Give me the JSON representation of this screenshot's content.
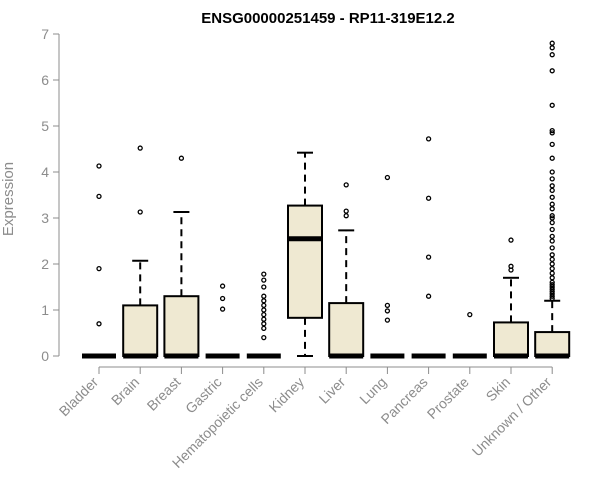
{
  "chart_data": {
    "type": "boxplot",
    "title": "ENSG00000251459 - RP11-319E12.2",
    "xlabel": "",
    "ylabel": "Expression",
    "ylim": [
      0,
      7
    ],
    "yticks": [
      0,
      1,
      2,
      3,
      4,
      5,
      6,
      7
    ],
    "grid": false,
    "box_color": "#efe9d2",
    "categories": [
      "Bladder",
      "Brain",
      "Breast",
      "Gastric",
      "Hematopoietic cells",
      "Kidney",
      "Liver",
      "Lung",
      "Pancreas",
      "Prostate",
      "Skin",
      "Unknown / Other"
    ],
    "boxes": [
      {
        "category": "Bladder",
        "min": 0,
        "q1": 0,
        "median": 0,
        "q3": 0,
        "max": 0,
        "outliers": [
          0.7,
          1.9,
          3.47,
          4.13
        ]
      },
      {
        "category": "Brain",
        "min": 0,
        "q1": 0,
        "median": 0,
        "q3": 1.1,
        "max": 2.07,
        "outliers": [
          3.13,
          4.52
        ]
      },
      {
        "category": "Breast",
        "min": 0,
        "q1": 0,
        "median": 0,
        "q3": 1.3,
        "max": 3.13,
        "outliers": [
          4.3
        ]
      },
      {
        "category": "Gastric",
        "min": 0,
        "q1": 0,
        "median": 0,
        "q3": 0,
        "max": 0,
        "outliers": [
          1.02,
          1.25,
          1.52
        ]
      },
      {
        "category": "Hematopoietic cells",
        "min": 0,
        "q1": 0,
        "median": 0,
        "q3": 0,
        "max": 0,
        "outliers": [
          0.4,
          0.6,
          0.7,
          0.8,
          0.9,
          1.0,
          1.1,
          1.2,
          1.3,
          1.5,
          1.65,
          1.78
        ]
      },
      {
        "category": "Kidney",
        "min": 0,
        "q1": 0.83,
        "median": 2.55,
        "q3": 3.27,
        "max": 4.42,
        "outliers": []
      },
      {
        "category": "Liver",
        "min": 0,
        "q1": 0,
        "median": 0,
        "q3": 1.15,
        "max": 2.73,
        "outliers": [
          3.05,
          3.15,
          3.72
        ]
      },
      {
        "category": "Lung",
        "min": 0,
        "q1": 0,
        "median": 0,
        "q3": 0,
        "max": 0,
        "outliers": [
          0.78,
          0.98,
          1.1,
          3.88
        ]
      },
      {
        "category": "Pancreas",
        "min": 0,
        "q1": 0,
        "median": 0,
        "q3": 0,
        "max": 0,
        "outliers": [
          1.3,
          2.15,
          3.43,
          4.72
        ]
      },
      {
        "category": "Prostate",
        "min": 0,
        "q1": 0,
        "median": 0,
        "q3": 0,
        "max": 0,
        "outliers": [
          0.9
        ]
      },
      {
        "category": "Skin",
        "min": 0,
        "q1": 0,
        "median": 0,
        "q3": 0.73,
        "max": 1.7,
        "outliers": [
          1.87,
          1.95,
          2.52
        ]
      },
      {
        "category": "Unknown / Other",
        "min": 0,
        "q1": 0,
        "median": 0,
        "q3": 0.52,
        "max": 1.2,
        "outliers": [
          1.25,
          1.3,
          1.35,
          1.4,
          1.45,
          1.5,
          1.55,
          1.6,
          1.7,
          1.8,
          1.9,
          2.0,
          2.1,
          2.2,
          2.35,
          2.5,
          2.6,
          2.75,
          2.9,
          3.0,
          3.05,
          3.2,
          3.3,
          3.45,
          3.6,
          3.7,
          3.85,
          4.0,
          4.3,
          4.6,
          4.85,
          4.9,
          5.45,
          6.2,
          6.55,
          6.7,
          6.8
        ]
      }
    ]
  }
}
